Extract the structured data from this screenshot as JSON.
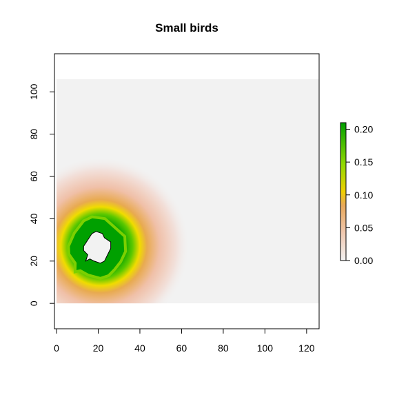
{
  "chart_data": {
    "type": "heatmap",
    "title": "Small birds",
    "xlabel": "",
    "ylabel": "",
    "xlim": [
      0,
      126
    ],
    "ylim": [
      0,
      106
    ],
    "x_axis_range": [
      -1,
      126
    ],
    "y_axis_range": [
      -12,
      118
    ],
    "x_ticks": [
      0,
      20,
      40,
      60,
      80,
      100,
      120
    ],
    "y_ticks": [
      0,
      20,
      40,
      60,
      80,
      100
    ],
    "grid": false,
    "legend": "right",
    "colorbar": {
      "ticks": [
        "0.00",
        "0.05",
        "0.10",
        "0.15",
        "0.20"
      ],
      "range": [
        0,
        0.21
      ],
      "colors": [
        "#f2f2f2",
        "#f0c8b0",
        "#e8a85a",
        "#f0d000",
        "#90d800",
        "#00a000"
      ]
    },
    "background_value": 0.0,
    "background_color": "#f2f2f2",
    "hotspot": {
      "center": [
        21,
        27
      ],
      "peak_value": 0.21,
      "core_value": 0.0,
      "boundary_outline": [
        [
          14,
          20
        ],
        [
          15,
          23
        ],
        [
          13,
          25
        ],
        [
          13,
          27
        ],
        [
          15,
          30
        ],
        [
          17,
          33
        ],
        [
          19,
          34
        ],
        [
          22,
          33
        ],
        [
          23,
          31
        ],
        [
          26,
          29
        ],
        [
          26,
          26
        ],
        [
          25,
          24
        ],
        [
          24,
          22
        ],
        [
          23,
          20
        ],
        [
          21,
          19
        ],
        [
          18,
          20
        ],
        [
          16,
          21
        ]
      ]
    }
  }
}
